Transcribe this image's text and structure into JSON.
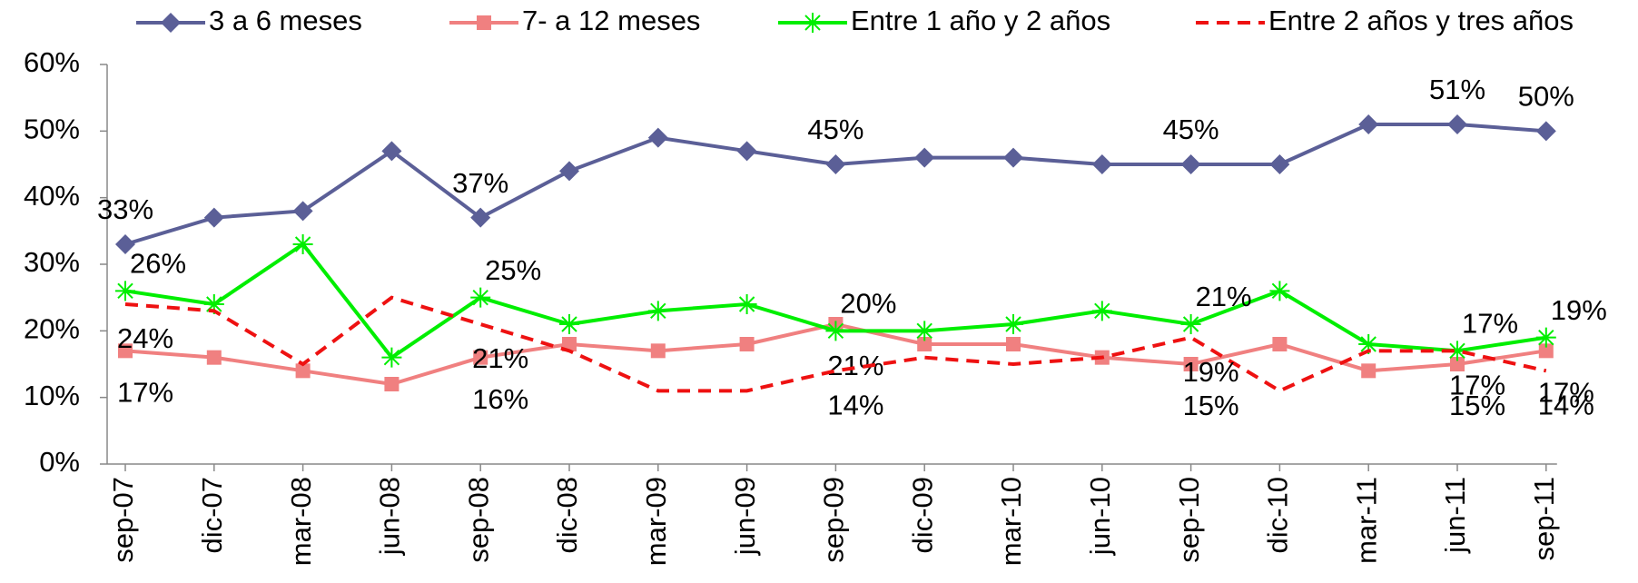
{
  "chart_data": {
    "type": "line",
    "categories": [
      "sep-07",
      "dic-07",
      "mar-08",
      "jun-08",
      "sep-08",
      "dic-08",
      "mar-09",
      "jun-09",
      "sep-09",
      "dic-09",
      "mar-10",
      "jun-10",
      "sep-10",
      "dic-10",
      "mar-11",
      "jun-11",
      "sep-11"
    ],
    "ylim": [
      0,
      60
    ],
    "yticks": [
      {
        "value": 0,
        "label": "0%"
      },
      {
        "value": 10,
        "label": "10%"
      },
      {
        "value": 20,
        "label": "20%"
      },
      {
        "value": 30,
        "label": "30%"
      },
      {
        "value": 40,
        "label": "40%"
      },
      {
        "value": 50,
        "label": "50%"
      },
      {
        "value": 60,
        "label": "60%"
      }
    ],
    "legend": "top",
    "series": [
      {
        "name": "3 a 6 meses",
        "color": "#5b5f97",
        "marker": "diamond",
        "dashed": false,
        "values": [
          33,
          37,
          38,
          47,
          37,
          44,
          49,
          47,
          45,
          46,
          46,
          45,
          45,
          45,
          51,
          51,
          50
        ],
        "value_labels": [
          "33%",
          null,
          null,
          null,
          "37%",
          null,
          null,
          null,
          "45%",
          null,
          null,
          null,
          "45%",
          null,
          null,
          "51%",
          "50%"
        ]
      },
      {
        "name": "7- a 12 meses",
        "color": "#f08080",
        "marker": "square",
        "dashed": false,
        "values": [
          17,
          16,
          14,
          12,
          16,
          18,
          17,
          18,
          21,
          18,
          18,
          16,
          15,
          18,
          14,
          15,
          17
        ],
        "value_labels": [
          "17%",
          null,
          null,
          null,
          "16%",
          null,
          null,
          null,
          "21%",
          null,
          null,
          null,
          "15%",
          null,
          null,
          "15%",
          "17%"
        ]
      },
      {
        "name": "Entre 1 año y 2 años",
        "color": "#00ee00",
        "marker": "star",
        "dashed": false,
        "values": [
          26,
          24,
          33,
          16,
          25,
          21,
          23,
          24,
          20,
          20,
          21,
          23,
          21,
          26,
          18,
          17,
          19
        ],
        "value_labels": [
          "26%",
          null,
          null,
          null,
          "25%",
          null,
          null,
          null,
          "20%",
          null,
          null,
          null,
          "21%",
          null,
          null,
          "17%",
          "19%"
        ]
      },
      {
        "name": "Entre 2 años y tres años",
        "color": "#ee1111",
        "marker": "none",
        "dashed": true,
        "values": [
          24,
          23,
          15,
          25,
          21,
          17,
          11,
          11,
          14,
          16,
          15,
          16,
          19,
          11,
          17,
          17,
          14
        ],
        "value_labels": [
          "24%",
          null,
          null,
          null,
          "21%",
          null,
          null,
          null,
          "14%",
          null,
          null,
          null,
          "19%",
          null,
          null,
          "17%",
          "14%"
        ]
      }
    ]
  }
}
